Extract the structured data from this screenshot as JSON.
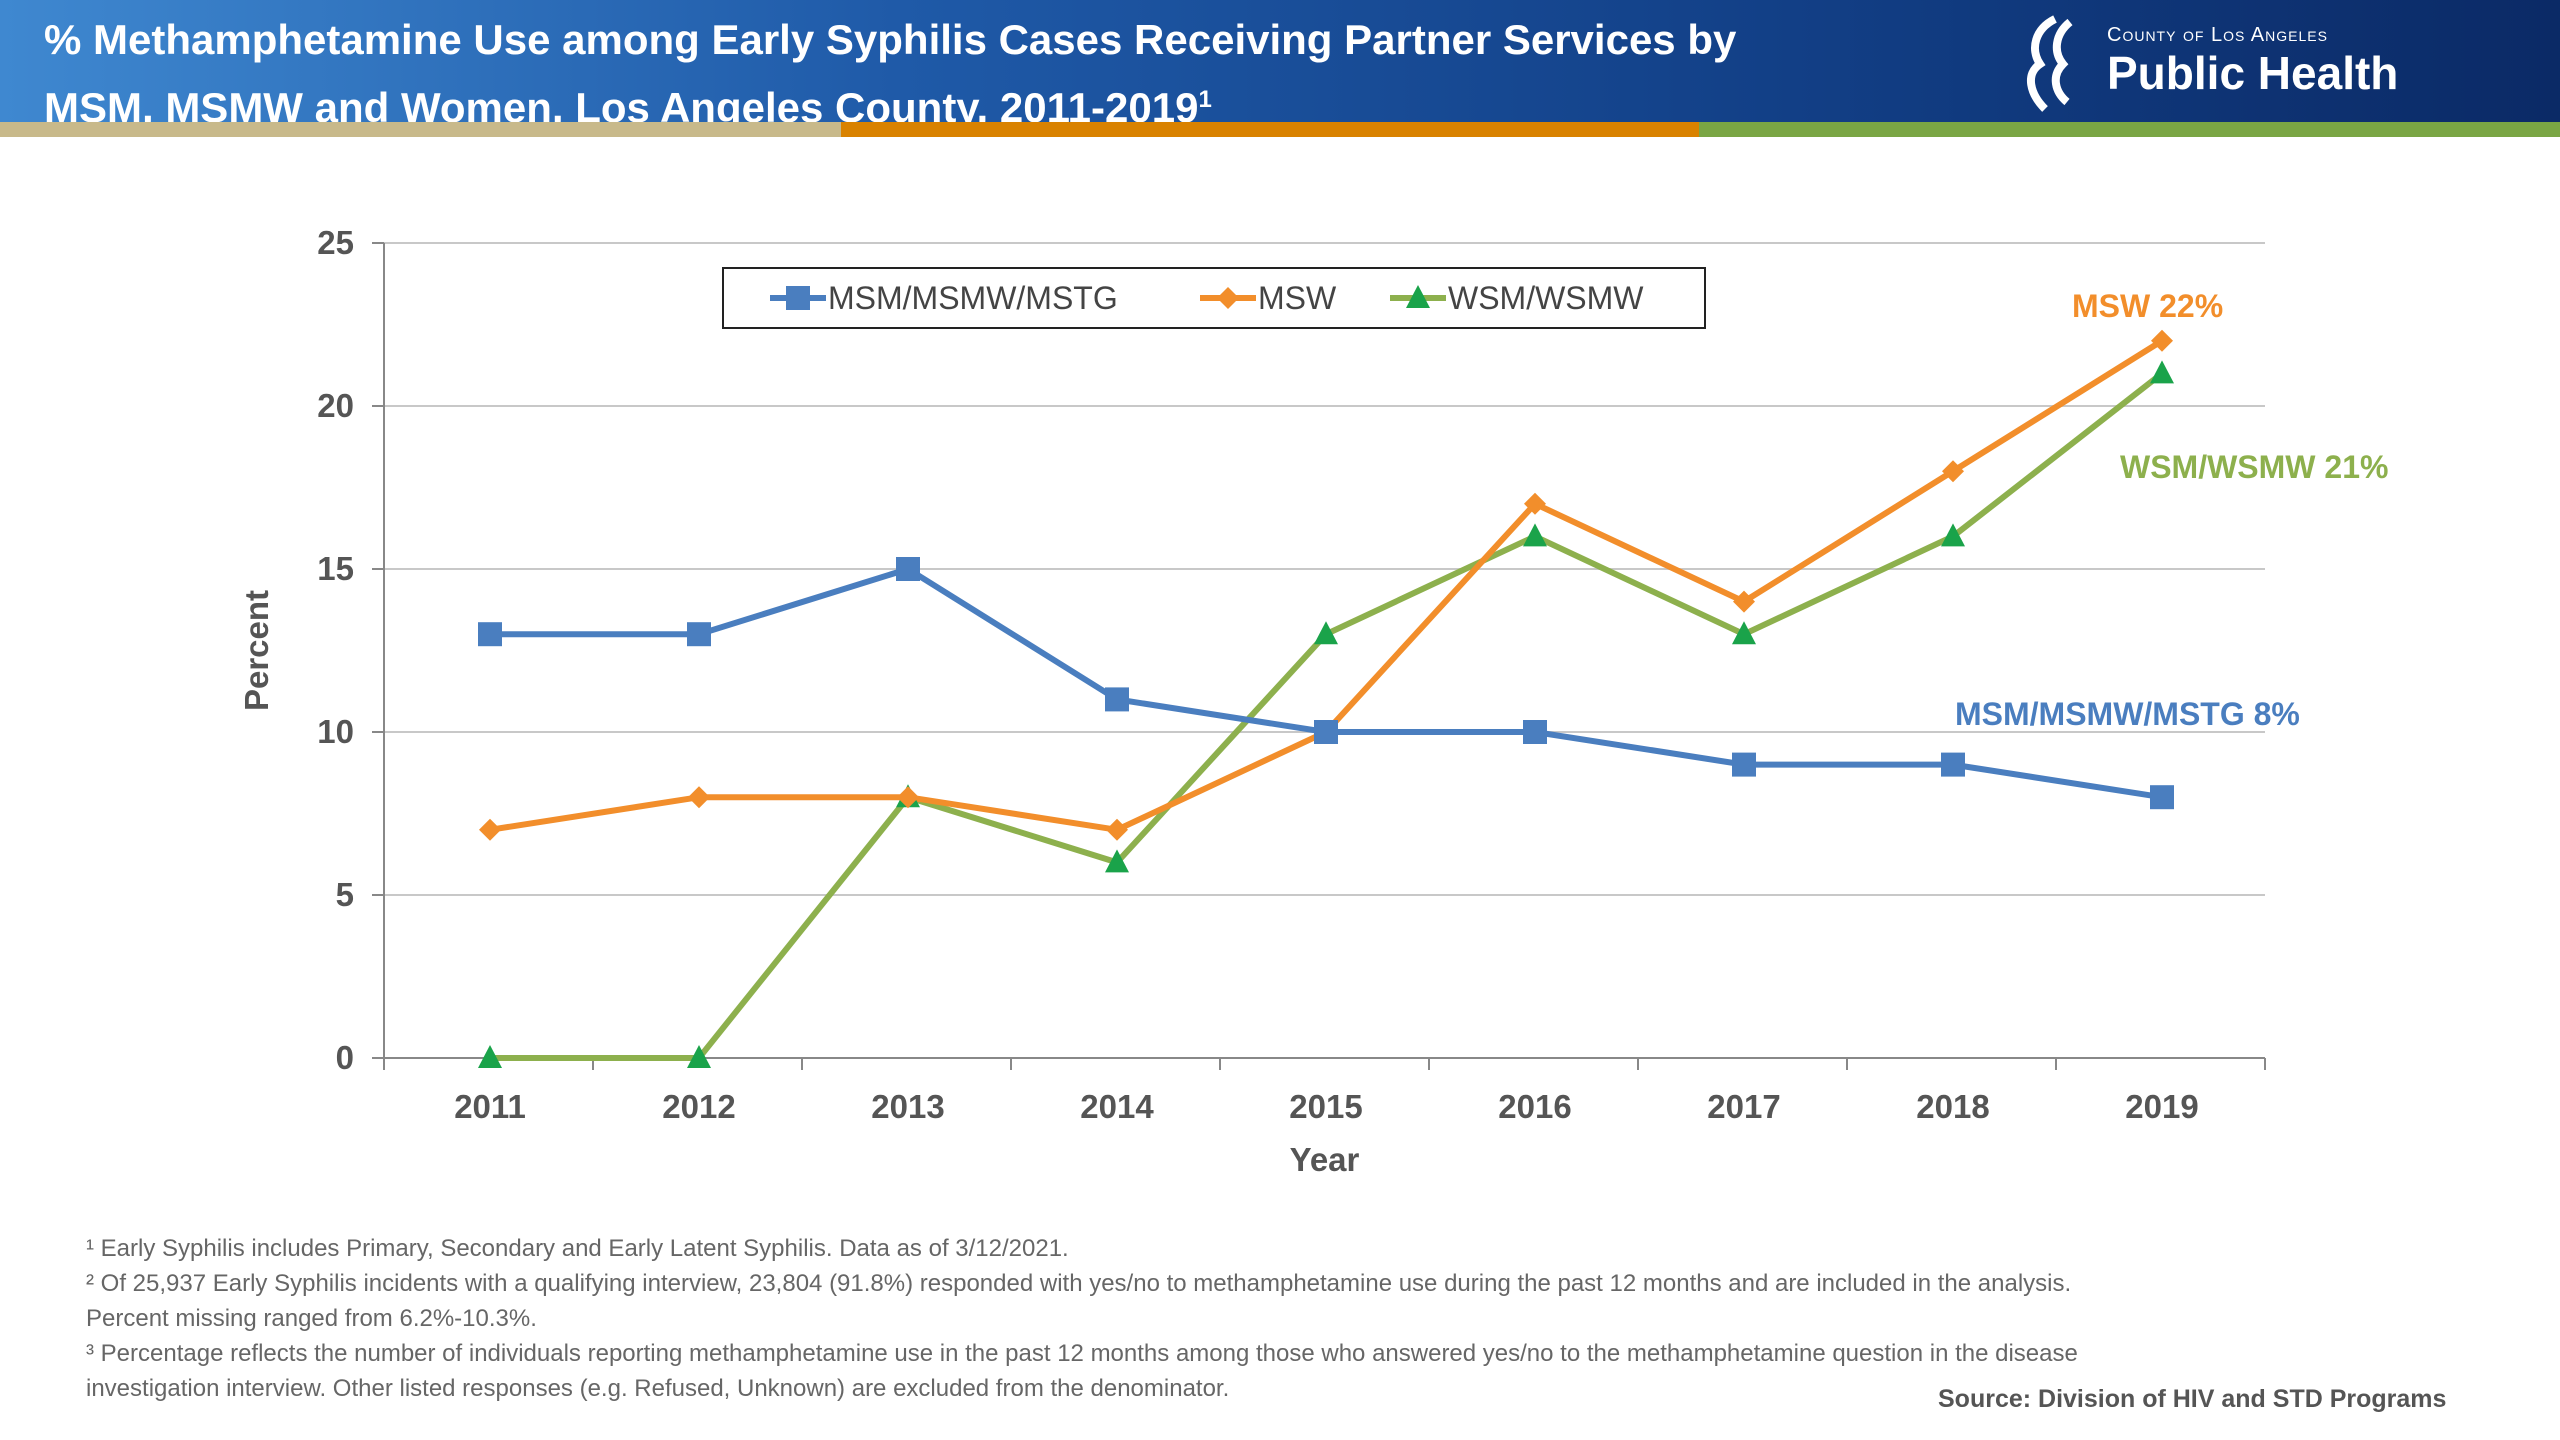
{
  "header": {
    "title": "% Methamphetamine Use among Early Syphilis Cases Receiving Partner Services by MSM, MSMW and Women, Los Angeles County, 2011-2019",
    "title_sup": "1",
    "logo_top": "County of Los Angeles",
    "logo_main": "Public Health",
    "bar_colors": [
      "#c8b98a",
      "#d98200",
      "#7aa644"
    ]
  },
  "chart_data": {
    "type": "line",
    "xlabel": "Year",
    "ylabel": "Percent",
    "categories": [
      "2011",
      "2012",
      "2013",
      "2014",
      "2015",
      "2016",
      "2017",
      "2018",
      "2019"
    ],
    "ylim": [
      0,
      25
    ],
    "yticks": [
      0,
      5,
      10,
      15,
      20,
      25
    ],
    "grid": true,
    "legend": "top-center",
    "series": [
      {
        "name": "MSM/MSMW/MSTG",
        "color": "#4a7ebf",
        "marker": "square",
        "values": [
          13,
          13,
          15,
          11,
          10,
          10,
          9,
          9,
          8
        ],
        "end_label": "MSM/MSMW/MSTG 8%"
      },
      {
        "name": "MSW",
        "color": "#f28e2b",
        "marker": "diamond",
        "values": [
          7,
          8,
          8,
          7,
          10,
          17,
          14,
          18,
          22
        ],
        "end_label": "MSW  22%"
      },
      {
        "name": "WSM/WSMW",
        "color": "#8db04d",
        "marker": "triangle",
        "values": [
          0,
          0,
          8,
          6,
          13,
          16,
          13,
          16,
          21
        ],
        "end_label": "WSM/WSMW 21%"
      }
    ]
  },
  "footnotes": [
    "¹ Early Syphilis includes Primary, Secondary and Early Latent Syphilis. Data as of 3/12/2021.",
    "² Of 25,937 Early Syphilis incidents with a qualifying interview, 23,804 (91.8%) responded with yes/no to methamphetamine use during the past 12 months and are included in the analysis.",
    "Percent missing ranged from 6.2%-10.3%.",
    "³ Percentage reflects the number of individuals reporting methamphetamine use in the past 12 months among those who answered yes/no to the methamphetamine question in the disease",
    "investigation interview. Other listed responses (e.g. Refused, Unknown) are excluded from the denominator."
  ],
  "source": "Source: Division of HIV and STD Programs"
}
